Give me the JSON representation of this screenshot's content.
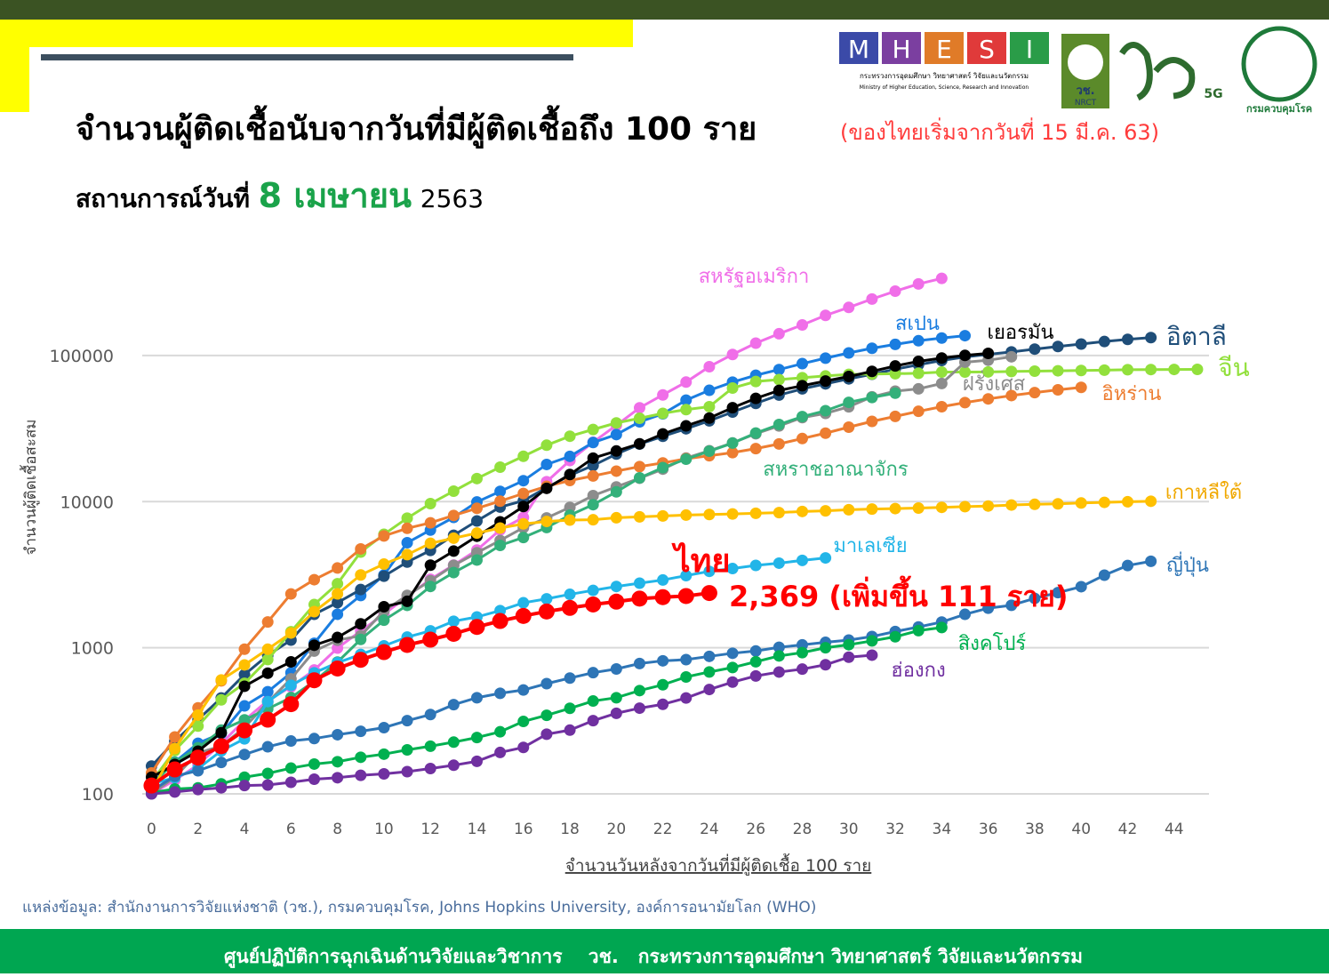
{
  "header": {
    "title": "จำนวนผู้ติดเชื้อนับจากวันที่มีผู้ติดเชื้อถึง 100 ราย",
    "subtitle": "(ของไทยเริ่มจากวันที่ 15 มี.ค. 63)",
    "date_prefix": "สถานการณ์วันที่",
    "date": "8 เมษายน",
    "year": "2563",
    "logos": {
      "mhesi": [
        "M",
        "H",
        "E",
        "S",
        "I"
      ],
      "mhesi_th": "กระทรวงการอุดมศึกษา วิทยาศาสตร์ วิจัยและนวัตกรรม",
      "mhesi_en": "Ministry of Higher Education, Science, Research and Innovation",
      "nrct_th": "วช.",
      "nrct_en": "NRCT",
      "five_g": "5G",
      "ddc": "กรมควบคุมโรค"
    }
  },
  "chart_data": {
    "type": "line",
    "log_scale": true,
    "grid": true,
    "y_label": "จำนวนผู้ติดเชื้อสะสม",
    "x_label": "จำนวนวันหลังจากวันที่มีผู้ติดเชื้อ 100 ราย",
    "xlim": [
      -0.4,
      45.5
    ],
    "ylim": [
      100,
      500000
    ],
    "xticks": [
      0,
      2,
      4,
      6,
      8,
      10,
      12,
      14,
      16,
      18,
      20,
      22,
      24,
      26,
      28,
      30,
      32,
      34,
      36,
      38,
      40,
      42,
      44
    ],
    "yticks": [
      100,
      1000,
      10000,
      100000
    ],
    "x": [
      0,
      1,
      2,
      3,
      4,
      5,
      6,
      7,
      8,
      9,
      10,
      11,
      12,
      13,
      14,
      15,
      16,
      17,
      18,
      19,
      20,
      21,
      22,
      23,
      24,
      25,
      26,
      27,
      28,
      29,
      30,
      31,
      32,
      33,
      34,
      35,
      36,
      37,
      38,
      39,
      40,
      41,
      42,
      43,
      44,
      45
    ],
    "annotation": "2,369 (เพิ่มขึ้น 111 ราย)",
    "series": [
      {
        "name": "สหรัฐอเมริกา",
        "color": "#f06ee8",
        "values": [
          100,
          124,
          158,
          221,
          319,
          435,
          541,
          704,
          994,
          1301,
          1697,
          2247,
          2943,
          3680,
          4663,
          6411,
          7786,
          13680,
          19101,
          25493,
          33276,
          43847,
          53740,
          65778,
          83836,
          101657,
          121478,
          140886,
          161807,
          188172,
          213372,
          243453,
          275586,
          308850,
          337072,
          null,
          null,
          null,
          null,
          null,
          null,
          null,
          null,
          null,
          null,
          null
        ]
      },
      {
        "name": "สเปน",
        "color": "#1a7de0",
        "values": [
          120,
          165,
          222,
          259,
          400,
          500,
          673,
          1073,
          1695,
          2277,
          3146,
          5232,
          6391,
          7798,
          9942,
          11748,
          13910,
          17963,
          20410,
          25374,
          28768,
          35136,
          39885,
          49515,
          57786,
          65719,
          73235,
          80110,
          87956,
          95923,
          104118,
          112065,
          119199,
          126168,
          131646,
          136675,
          null,
          null,
          null,
          null,
          null,
          null,
          null,
          null,
          null,
          null
        ]
      },
      {
        "name": "อิตาลี",
        "color": "#1f4e79",
        "values": [
          155,
          229,
          322,
          453,
          655,
          888,
          1128,
          1694,
          2036,
          2502,
          3089,
          3858,
          4636,
          5883,
          7375,
          9172,
          10149,
          12462,
          15113,
          17660,
          21157,
          24747,
          27980,
          31506,
          35713,
          41035,
          47021,
          53578,
          59138,
          63927,
          69176,
          74386,
          80589,
          86498,
          92472,
          97689,
          101739,
          105792,
          110574,
          115242,
          119827,
          124632,
          128948,
          132547,
          null,
          null
        ]
      },
      {
        "name": "จีน",
        "color": "#92e03c",
        "values": [
          121,
          198,
          291,
          440,
          571,
          830,
          1287,
          1975,
          2744,
          4515,
          5974,
          7711,
          9692,
          11791,
          14380,
          17205,
          20440,
          24324,
          28018,
          31161,
          34546,
          37198,
          40171,
          42638,
          44653,
          59895,
          66358,
          68413,
          70513,
          72434,
          74211,
          74619,
          75077,
          75550,
          77001,
          77022,
          77241,
          77754,
          78166,
          78600,
          78928,
          79356,
          79932,
          80136,
          80261,
          80386
        ]
      },
      {
        "name": "ฝรั่งเศส",
        "color": "#8c8c8c",
        "values": [
          100,
          130,
          191,
          212,
          285,
          423,
          613,
          949,
          1126,
          1209,
          1784,
          2281,
          2876,
          3661,
          4469,
          5423,
          6633,
          7730,
          9134,
          10995,
          12612,
          14459,
          16689,
          19856,
          22304,
          25233,
          29155,
          32964,
          37575,
          40174,
          44550,
          52128,
          56989,
          59105,
          64338,
          89953,
          92839,
          98010,
          null,
          null,
          null,
          null,
          null,
          null,
          null,
          null
        ]
      },
      {
        "name": "อิหร่าน",
        "color": "#ed7d31",
        "values": [
          139,
          245,
          388,
          593,
          978,
          1501,
          2336,
          2922,
          3513,
          4747,
          5823,
          6566,
          7161,
          8042,
          9000,
          10075,
          11364,
          12729,
          13938,
          14991,
          16169,
          17361,
          18407,
          19644,
          20610,
          21638,
          23049,
          24811,
          27017,
          29406,
          32332,
          35408,
          38309,
          41495,
          44605,
          47593,
          50468,
          53183,
          55743,
          58226,
          60500,
          null,
          null,
          null,
          null,
          null
        ]
      },
      {
        "name": "สหราชอาณาจักร",
        "color": "#33b07a",
        "values": [
          116,
          164,
          207,
          273,
          321,
          382,
          456,
          590,
          798,
          1140,
          1543,
          1950,
          2626,
          3269,
          3983,
          5018,
          5683,
          6650,
          8077,
          9529,
          11658,
          14543,
          17089,
          19522,
          22141,
          25150,
          29474,
          33718,
          38168,
          41903,
          47806,
          51608,
          55242,
          null,
          null,
          null,
          null,
          null,
          null,
          null,
          null,
          null,
          null,
          null,
          null,
          null
        ]
      },
      {
        "name": "เยอรมัน",
        "color": "#000000",
        "values": [
          130,
          159,
          196,
          262,
          545,
          670,
          800,
          1040,
          1176,
          1457,
          1908,
          2078,
          3675,
          4585,
          5795,
          7272,
          9257,
          12327,
          15320,
          19848,
          22213,
          24873,
          29056,
          32986,
          37323,
          43938,
          50871,
          57695,
          62095,
          66885,
          71808,
          77872,
          84794,
          91159,
          96092,
          100123,
          103374,
          null,
          null,
          null,
          null,
          null,
          null,
          null,
          null,
          null
        ]
      },
      {
        "name": "เกาหลีใต้",
        "color": "#ffc000",
        "values": [
          104,
          204,
          346,
          602,
          763,
          977,
          1261,
          1766,
          2337,
          3150,
          3736,
          4335,
          5186,
          5621,
          6088,
          6593,
          7041,
          7314,
          7478,
          7513,
          7755,
          7869,
          7979,
          8086,
          8162,
          8236,
          8320,
          8413,
          8565,
          8652,
          8799,
          8897,
          8961,
          9037,
          9137,
          9241,
          9332,
          9478,
          9583,
          9661,
          9786,
          9887,
          9976,
          10062,
          null,
          null
        ]
      },
      {
        "name": "มาเลเซีย",
        "color": "#22b5e8",
        "values": [
          117,
          129,
          149,
          197,
          238,
          428,
          553,
          673,
          790,
          900,
          1030,
          1183,
          1306,
          1518,
          1624,
          1796,
          2031,
          2161,
          2320,
          2470,
          2626,
          2766,
          2908,
          3116,
          3333,
          3483,
          3662,
          3793,
          3963,
          4119,
          null,
          null,
          null,
          null,
          null,
          null,
          null,
          null,
          null,
          null,
          null,
          null,
          null,
          null,
          null,
          null
        ]
      },
      {
        "name": "ญี่ปุ่น",
        "color": "#2e75b6",
        "values": [
          105,
          132,
          144,
          164,
          186,
          210,
          230,
          239,
          254,
          268,
          284,
          317,
          349,
          408,
          455,
          488,
          514,
          568,
          620,
          675,
          716,
          780,
          814,
          829,
          873,
          917,
          950,
          1007,
          1046,
          1089,
          1128,
          1193,
          1291,
          1387,
          1499,
          1693,
          1866,
          1953,
          2178,
          2384,
          2617,
          3139,
          3654,
          3906,
          null,
          null
        ]
      },
      {
        "name": "สิงคโปร์",
        "color": "#00b050",
        "values": [
          102,
          108,
          110,
          117,
          130,
          138,
          150,
          160,
          166,
          178,
          187,
          200,
          212,
          226,
          243,
          266,
          313,
          345,
          385,
          432,
          455,
          509,
          558,
          631,
          683,
          732,
          802,
          879,
          926,
          1000,
          1049,
          1114,
          1189,
          1309,
          1375,
          null,
          null,
          null,
          null,
          null,
          null,
          null,
          null,
          null,
          null,
          null
        ]
      },
      {
        "name": "ฮ่องกง",
        "color": "#7030a0",
        "values": [
          100,
          103,
          107,
          110,
          114,
          115,
          120,
          126,
          129,
          134,
          137,
          142,
          149,
          157,
          167,
          192,
          208,
          256,
          273,
          317,
          356,
          386,
          410,
          453,
          518,
          582,
          641,
          682,
          714,
          765,
          862,
          890,
          null,
          null,
          null,
          null,
          null,
          null,
          null,
          null,
          null,
          null,
          null,
          null,
          null,
          null
        ]
      },
      {
        "name": "ไทย",
        "color": "#ff0000",
        "values": [
          114,
          147,
          177,
          212,
          272,
          322,
          411,
          599,
          721,
          827,
          934,
          1045,
          1136,
          1245,
          1388,
          1524,
          1651,
          1771,
          1875,
          1978,
          2067,
          2169,
          2220,
          2258,
          2369,
          null,
          null,
          null,
          null,
          null,
          null,
          null,
          null,
          null,
          null,
          null,
          null,
          null,
          null,
          null,
          null,
          null,
          null,
          null,
          null,
          null
        ]
      }
    ]
  },
  "source": "แหล่งข้อมูล: สำนักงานการวิจัยแห่งชาติ (วช.), กรมควบคุมโรค, Johns Hopkins University, องค์การอนามัยโลก (WHO)",
  "footer": "ศูนย์ปฏิบัติการฉุกเฉินด้านวิจัยและวิชาการ    วช.   กระทรวงการอุดมศึกษา วิทยาศาสตร์ วิจัยและนวัตกรรม"
}
